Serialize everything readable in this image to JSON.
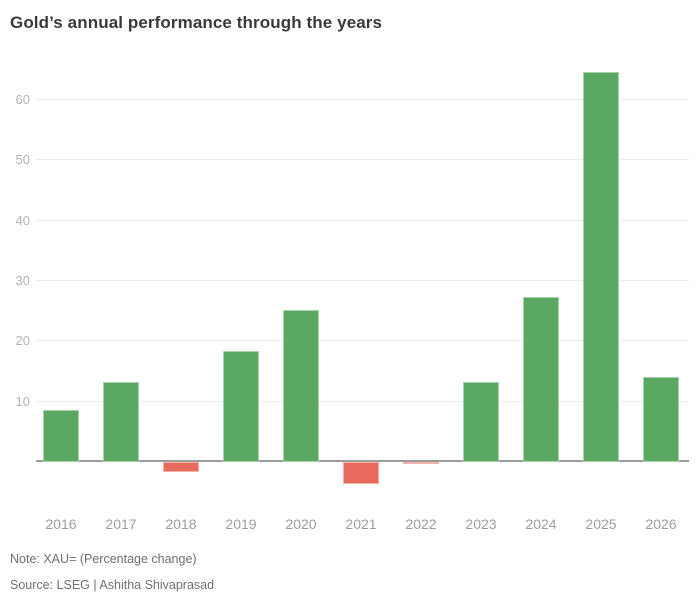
{
  "header": {
    "title": "Gold’s annual performance through the years"
  },
  "footer": {
    "note": "Note: XAU= (Percentage change)",
    "source": "Source: LSEG | Ashitha Shivaprasad"
  },
  "colors": {
    "positive_bar": "#5aa861",
    "positive_bar_border": "#a9d2ac",
    "negative_bar": "#e8695d",
    "negative_bar_border": "#f3b2a9",
    "gridline": "#e9e9e9",
    "zero_line": "#9c9c9c",
    "title_text": "#3a3a3a",
    "ytick_text": "#b3b3b3",
    "xtick_text": "#9d9d9d",
    "footer_text": "#6f6f6f"
  },
  "chart_data": {
    "type": "bar",
    "title": "Gold’s annual performance through the years",
    "categories": [
      "2016",
      "2017",
      "2018",
      "2019",
      "2020",
      "2021",
      "2022",
      "2023",
      "2024",
      "2025",
      "2026"
    ],
    "values": [
      8.5,
      13.1,
      -1.6,
      18.3,
      25.1,
      -3.6,
      -0.4,
      13.1,
      27.2,
      64.5,
      14.0
    ],
    "xlabel": "",
    "ylabel": "",
    "yticks": [
      10,
      20,
      30,
      40,
      50,
      60
    ],
    "ylim": [
      -6,
      66
    ],
    "grid": true,
    "legend": false,
    "positive_color": "#5aa861",
    "negative_color": "#e8695d"
  }
}
